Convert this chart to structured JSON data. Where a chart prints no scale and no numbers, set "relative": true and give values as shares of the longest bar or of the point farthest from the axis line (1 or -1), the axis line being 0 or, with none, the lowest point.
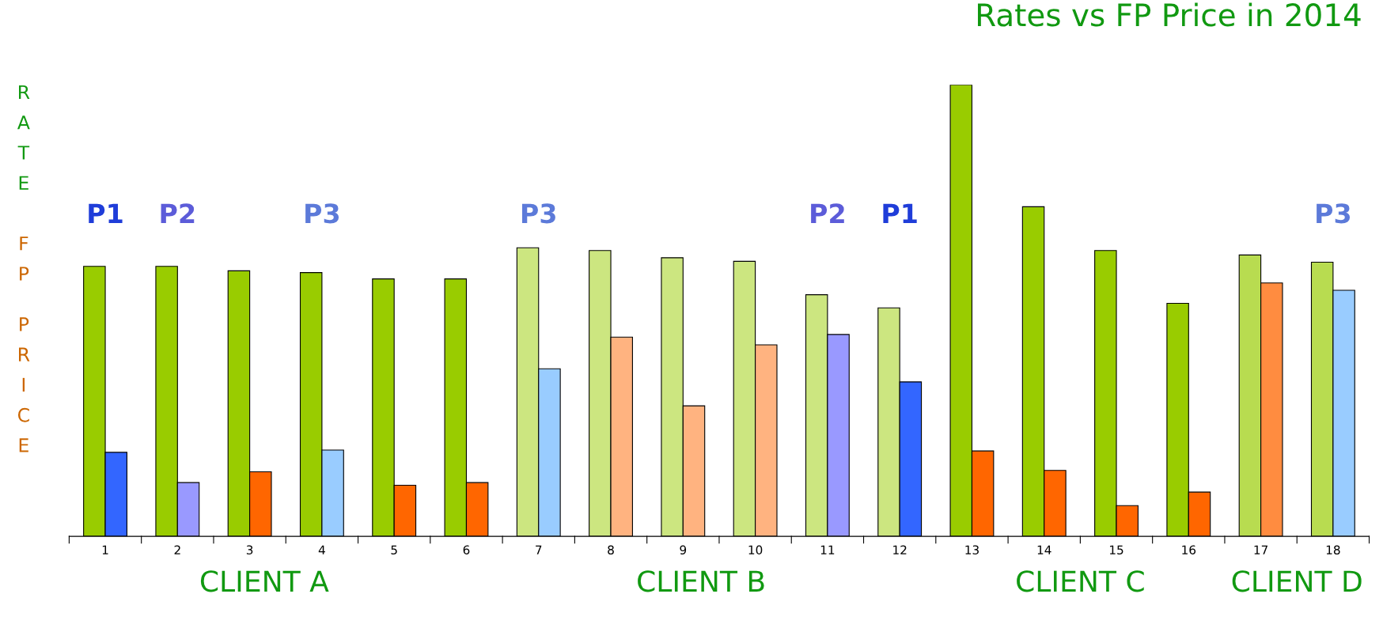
{
  "chart_data": {
    "type": "bar",
    "title": "Rates vs FP Price in 2014",
    "ylabel": "RATE FP PRICE",
    "relative": true,
    "categories": [
      "1",
      "2",
      "3",
      "4",
      "5",
      "6",
      "7",
      "8",
      "9",
      "10",
      "11",
      "12",
      "13",
      "14",
      "15",
      "16",
      "17",
      "18"
    ],
    "series": [
      {
        "colors": [
          "#99cc00",
          "#99cc00",
          "#99cc00",
          "#99cc00",
          "#99cc00",
          "#99cc00",
          "#cce680",
          "#cce680",
          "#cce680",
          "#cce680",
          "#cce680",
          "#cce680",
          "#99cc00",
          "#99cc00",
          "#99cc00",
          "#99cc00",
          "#b8dc50",
          "#b8dc50"
        ],
        "values": [
          0.598,
          0.598,
          0.588,
          0.584,
          0.57,
          0.57,
          0.639,
          0.633,
          0.617,
          0.609,
          0.535,
          0.506,
          1,
          0.73,
          0.633,
          0.516,
          0.623,
          0.607
        ]
      },
      {
        "colors": [
          "#3366ff",
          "#9999ff",
          "#ff6600",
          "#99ccff",
          "#ff6600",
          "#ff6600",
          "#99ccff",
          "#ffb380",
          "#ffb380",
          "#ffb380",
          "#9999ff",
          "#3366ff",
          "#ff6600",
          "#ff6600",
          "#ff6600",
          "#ff6600",
          "#ff8c40",
          "#99ccff"
        ],
        "values": [
          0.186,
          0.119,
          0.143,
          0.191,
          0.113,
          0.119,
          0.371,
          0.441,
          0.289,
          0.424,
          0.447,
          0.342,
          0.189,
          0.146,
          0.068,
          0.098,
          0.561,
          0.545
        ]
      }
    ],
    "annotations": [
      "P1",
      "P2",
      "P3",
      "P3",
      "P2",
      "P1",
      "P3",
      "CLIENT A",
      "CLIENT B",
      "CLIENT C",
      "CLIENT D"
    ],
    "grid": false,
    "legend": false
  }
}
